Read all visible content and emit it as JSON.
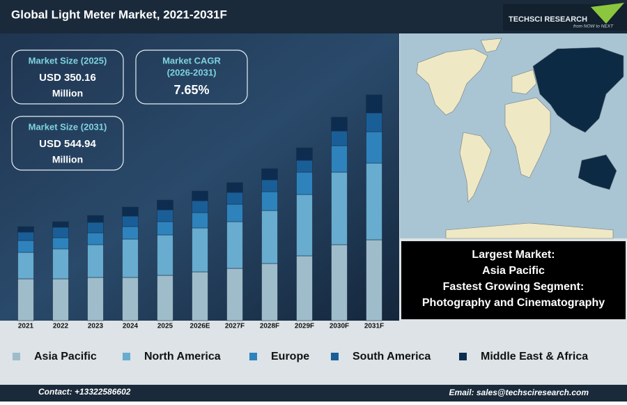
{
  "header": {
    "title": "Global Light Meter Market, 2021-2031F",
    "logo": "TECHSCI RESEARCH",
    "tagline": "from NOW to NEXT"
  },
  "kpis": [
    {
      "label": "Market Size (2025)",
      "value": "USD 350.16",
      "unit": "Million"
    },
    {
      "label": "Market CAGR",
      "period": "(2026-2031)",
      "value": "7.65%"
    },
    {
      "label": "Market Size (2031)",
      "value": "USD 544.94",
      "unit": "Million"
    }
  ],
  "info_box": {
    "lines": [
      "Largest Market:",
      "Asia Pacific",
      "Fastest Growing Segment:",
      "Photography and Cinematography"
    ]
  },
  "chart_data": {
    "type": "stacked_bar",
    "categories": [
      "2021",
      "2022",
      "2023",
      "2024",
      "2025",
      "2026E",
      "2027F",
      "2028F",
      "2029F",
      "2030F",
      "2031F"
    ],
    "ylim": [
      0,
      340
    ],
    "series": [
      {
        "name": "Asia Pacific",
        "color": "#9fbccb",
        "values": [
          60,
          60,
          62,
          62,
          65,
          70,
          75,
          82,
          93,
          109,
          116
        ]
      },
      {
        "name": "North America",
        "color": "#68acd0",
        "values": [
          38,
          43,
          47,
          55,
          58,
          63,
          67,
          76,
          88,
          104,
          110
        ]
      },
      {
        "name": "Europe",
        "color": "#2e83bd",
        "values": [
          17,
          16,
          17,
          18,
          19,
          22,
          25,
          27,
          32,
          38,
          45
        ]
      },
      {
        "name": "South America",
        "color": "#1a5e98",
        "values": [
          12,
          15,
          15,
          15,
          17,
          17,
          17,
          17,
          17,
          21,
          27
        ]
      },
      {
        "name": "Middle East & Africa",
        "color": "#0c2d50",
        "values": [
          8,
          8,
          10,
          13,
          14,
          14,
          14,
          16,
          18,
          20,
          26
        ]
      }
    ]
  },
  "footer": {
    "contact": "Contact: +13322586602",
    "email": "Email: sales@techsciresearch.com"
  }
}
